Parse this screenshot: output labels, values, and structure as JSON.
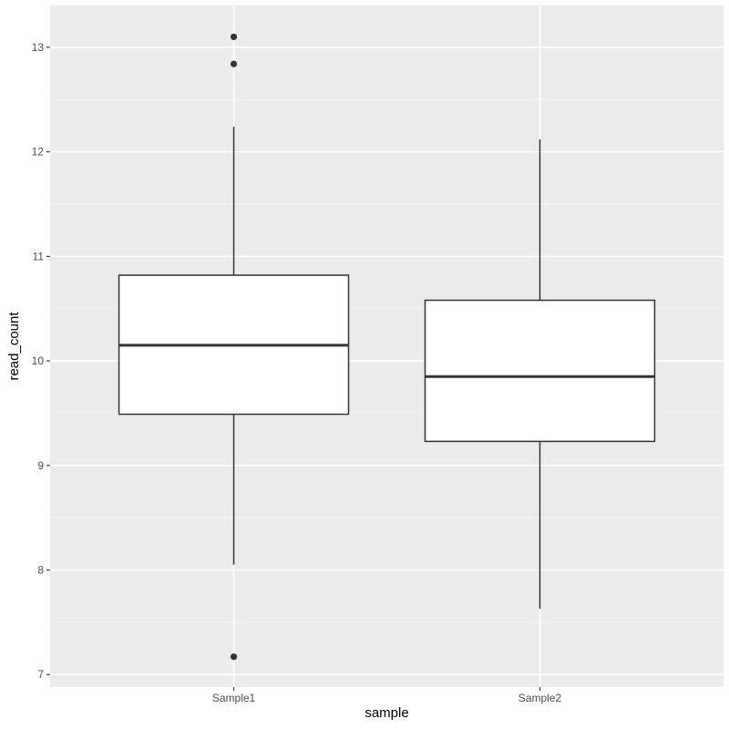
{
  "chart_data": {
    "type": "boxplot",
    "xlabel": "sample",
    "ylabel": "read_count",
    "ylim": [
      6.88,
      13.4
    ],
    "y_ticks": [
      7,
      8,
      9,
      10,
      11,
      12,
      13
    ],
    "y_minor_ticks": [
      7.5,
      8.5,
      9.5,
      10.5,
      11.5,
      12.5
    ],
    "grid": true,
    "legend": "none",
    "categories": [
      "Sample1",
      "Sample2"
    ],
    "boxes": [
      {
        "category": "Sample1",
        "whisker_low": 8.05,
        "q1": 9.49,
        "median": 10.15,
        "q3": 10.82,
        "whisker_high": 12.24,
        "outliers": [
          13.1,
          12.84,
          7.17
        ]
      },
      {
        "category": "Sample2",
        "whisker_low": 7.63,
        "q1": 9.23,
        "median": 9.85,
        "q3": 10.58,
        "whisker_high": 12.12,
        "outliers": []
      }
    ],
    "colors": {
      "panel_background": "#ebebeb",
      "grid_major": "#ffffff",
      "grid_minor": "#f5f5f5",
      "box_fill": "#ffffff",
      "box_stroke": "#333333",
      "outlier": "#333333"
    }
  }
}
